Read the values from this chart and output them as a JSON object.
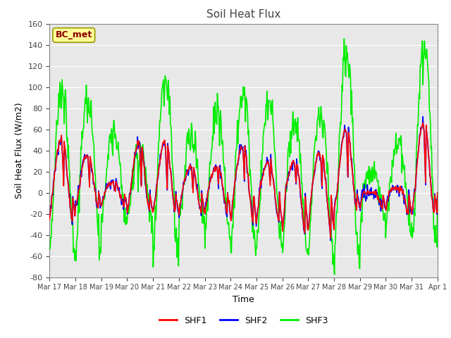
{
  "title": "Soil Heat Flux",
  "ylabel": "Soil Heat Flux (W/m2)",
  "xlabel": "Time",
  "ylim": [
    -80,
    160
  ],
  "fig_bg_color": "#ffffff",
  "plot_bg_color": "#e8e8e8",
  "annotation_text": "BC_met",
  "annotation_color": "#8B0000",
  "annotation_bg": "#FFFF99",
  "annotation_edge": "#999900",
  "shf1_color": "red",
  "shf2_color": "blue",
  "shf3_color": "#00EE00",
  "shf1_lw": 1.2,
  "shf2_lw": 1.2,
  "shf3_lw": 1.2,
  "xtick_labels": [
    "Mar 17",
    "Mar 18",
    "Mar 19",
    "Mar 20",
    "Mar 21",
    "Mar 22",
    "Mar 23",
    "Mar 24",
    "Mar 25",
    "Mar 26",
    "Mar 27",
    "Mar 28",
    "Mar 29",
    "Mar 30",
    "Mar 31",
    "Apr 1"
  ],
  "ytick_labels": [
    -80,
    -60,
    -40,
    -20,
    0,
    20,
    40,
    60,
    80,
    100,
    120,
    140,
    160
  ],
  "n_days": 15,
  "pts_per_day": 48,
  "title_fontsize": 11,
  "label_fontsize": 9,
  "tick_fontsize": 8,
  "legend_fontsize": 9
}
